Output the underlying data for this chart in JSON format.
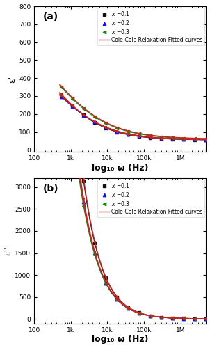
{
  "fig_width": 3.02,
  "fig_height": 5.0,
  "dpi": 100,
  "background_color": "#ffffff",
  "subplot_a": {
    "label": "(a)",
    "ylabel": "ε'",
    "xlabel": "log₁₀ ω (Hz)",
    "xlim_log": [
      100,
      5000000
    ],
    "ylim": [
      -10,
      800
    ],
    "yticks": [
      0,
      100,
      200,
      300,
      400,
      500,
      600,
      700,
      800
    ],
    "series": [
      {
        "A": 55,
        "B": 620,
        "n": 0.62,
        "f0": 300,
        "color": "#111111",
        "label": "x =0.1",
        "marker": "s",
        "ms": 3.0
      },
      {
        "A": 55,
        "B": 600,
        "n": 0.58,
        "f0": 280,
        "color": "#1111dd",
        "label": "x =0.2",
        "marker": "^",
        "ms": 3.2
      },
      {
        "A": 58,
        "B": 730,
        "n": 0.55,
        "f0": 260,
        "color": "#118811",
        "label": "x =0.3",
        "marker": "<",
        "ms": 3.2
      }
    ],
    "fit_color": "#cc2222",
    "fit_label": "Cole-Cole Relaxation Fitted curves",
    "fit_offsets": [
      {
        "A": 56,
        "B": 628,
        "n": 0.615,
        "f0": 295
      },
      {
        "A": 56,
        "B": 608,
        "n": 0.575,
        "f0": 275
      },
      {
        "A": 60,
        "B": 745,
        "n": 0.545,
        "f0": 255
      }
    ]
  },
  "subplot_b": {
    "label": "(b)",
    "ylabel": "ε''",
    "xlabel": "log₁₀ ω (Hz)",
    "xlim_log": [
      100,
      5000000
    ],
    "ylim": [
      -100,
      3200
    ],
    "yticks": [
      0,
      500,
      1000,
      1500,
      2000,
      2500,
      3000
    ],
    "series": [
      {
        "A": 5,
        "B": 32000,
        "n": 0.92,
        "f0": 200,
        "color": "#111111",
        "label": "x =0.1",
        "marker": "s",
        "ms": 3.0
      },
      {
        "A": 5,
        "B": 26000,
        "n": 0.9,
        "f0": 200,
        "color": "#1111dd",
        "label": "x =0.2",
        "marker": "^",
        "ms": 3.2
      },
      {
        "A": 5,
        "B": 24000,
        "n": 0.88,
        "f0": 200,
        "color": "#118811",
        "label": "x =0.3",
        "marker": "<",
        "ms": 3.2
      }
    ],
    "fit_color": "#cc2222",
    "fit_label": "Cole-Cole Relaxation Fitted curves",
    "fit_offsets": [
      {
        "A": 5,
        "B": 33000,
        "n": 0.92,
        "f0": 198
      },
      {
        "A": 5,
        "B": 27000,
        "n": 0.9,
        "f0": 198
      },
      {
        "A": 5,
        "B": 25000,
        "n": 0.88,
        "f0": 198
      }
    ]
  }
}
